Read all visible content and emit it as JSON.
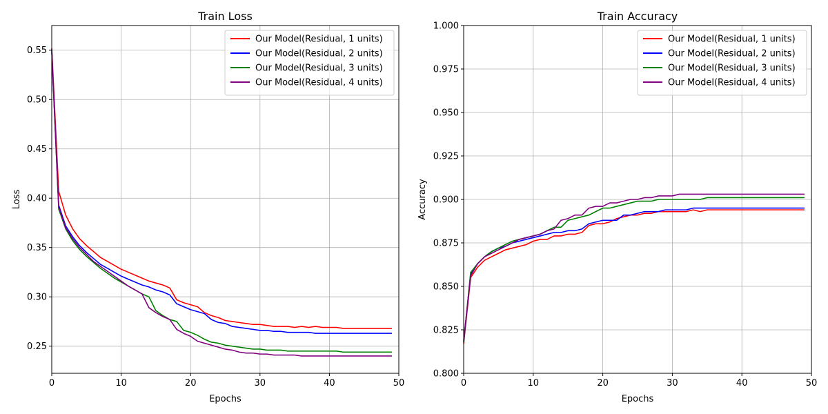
{
  "chart_data": [
    {
      "type": "line",
      "title": "Train Loss",
      "xlabel": "Epochs",
      "ylabel": "Loss",
      "xlim": [
        0,
        50
      ],
      "ylim": [
        0.2225,
        0.575
      ],
      "xticks": [
        0,
        10,
        20,
        30,
        40,
        50
      ],
      "yticks": [
        0.25,
        0.3,
        0.35,
        0.4,
        0.45,
        0.5,
        0.55
      ],
      "ytick_labels": [
        "0.25",
        "0.30",
        "0.35",
        "0.40",
        "0.45",
        "0.50",
        "0.55"
      ],
      "grid": true,
      "legend_position": "top-right",
      "series": [
        {
          "name": "Our Model(Residual, 1 units)",
          "color": "#ff0000",
          "values": [
            0.552,
            0.407,
            0.383,
            0.369,
            0.359,
            0.352,
            0.346,
            0.34,
            0.336,
            0.332,
            0.328,
            0.325,
            0.322,
            0.319,
            0.316,
            0.314,
            0.312,
            0.309,
            0.297,
            0.294,
            0.292,
            0.29,
            0.284,
            0.281,
            0.279,
            0.276,
            0.275,
            0.274,
            0.273,
            0.272,
            0.272,
            0.271,
            0.27,
            0.27,
            0.27,
            0.269,
            0.27,
            0.269,
            0.27,
            0.269,
            0.269,
            0.269,
            0.268,
            0.268,
            0.268,
            0.268,
            0.268,
            0.268,
            0.268,
            0.268
          ]
        },
        {
          "name": "Our Model(Residual, 2 units)",
          "color": "#0000ff",
          "values": [
            0.548,
            0.393,
            0.372,
            0.361,
            0.352,
            0.345,
            0.339,
            0.333,
            0.329,
            0.325,
            0.321,
            0.318,
            0.315,
            0.312,
            0.31,
            0.307,
            0.305,
            0.302,
            0.293,
            0.29,
            0.287,
            0.285,
            0.283,
            0.277,
            0.274,
            0.273,
            0.27,
            0.269,
            0.268,
            0.267,
            0.266,
            0.266,
            0.265,
            0.265,
            0.264,
            0.264,
            0.264,
            0.264,
            0.263,
            0.263,
            0.263,
            0.263,
            0.263,
            0.263,
            0.263,
            0.263,
            0.263,
            0.263,
            0.263,
            0.263
          ]
        },
        {
          "name": "Our Model(Residual, 3 units)",
          "color": "#008000",
          "values": [
            0.55,
            0.389,
            0.369,
            0.357,
            0.348,
            0.341,
            0.335,
            0.329,
            0.324,
            0.319,
            0.315,
            0.311,
            0.307,
            0.303,
            0.3,
            0.286,
            0.281,
            0.277,
            0.275,
            0.266,
            0.264,
            0.261,
            0.257,
            0.254,
            0.253,
            0.251,
            0.25,
            0.249,
            0.248,
            0.247,
            0.247,
            0.246,
            0.246,
            0.246,
            0.245,
            0.245,
            0.245,
            0.245,
            0.245,
            0.245,
            0.245,
            0.245,
            0.244,
            0.244,
            0.244,
            0.244,
            0.244,
            0.244,
            0.244,
            0.244
          ]
        },
        {
          "name": "Our Model(Residual, 4 units)",
          "color": "#800080",
          "values": [
            0.551,
            0.391,
            0.37,
            0.359,
            0.35,
            0.343,
            0.336,
            0.331,
            0.326,
            0.321,
            0.316,
            0.311,
            0.307,
            0.303,
            0.289,
            0.284,
            0.28,
            0.277,
            0.267,
            0.263,
            0.26,
            0.255,
            0.253,
            0.251,
            0.249,
            0.247,
            0.246,
            0.244,
            0.243,
            0.243,
            0.242,
            0.242,
            0.241,
            0.241,
            0.241,
            0.241,
            0.24,
            0.24,
            0.24,
            0.24,
            0.24,
            0.24,
            0.24,
            0.24,
            0.24,
            0.24,
            0.24,
            0.24,
            0.24,
            0.24
          ]
        }
      ]
    },
    {
      "type": "line",
      "title": "Train Accuracy",
      "xlabel": "Epochs",
      "ylabel": "Accuracy",
      "xlim": [
        0,
        50
      ],
      "ylim": [
        0.8,
        1.0
      ],
      "xticks": [
        0,
        10,
        20,
        30,
        40,
        50
      ],
      "yticks": [
        0.8,
        0.825,
        0.85,
        0.875,
        0.9,
        0.925,
        0.95,
        0.975,
        1.0
      ],
      "ytick_labels": [
        "0.800",
        "0.825",
        "0.850",
        "0.875",
        "0.900",
        "0.925",
        "0.950",
        "0.975",
        "1.000"
      ],
      "grid": true,
      "legend_position": "top-right",
      "series": [
        {
          "name": "Our Model(Residual, 1 units)",
          "color": "#ff0000",
          "values": [
            0.817,
            0.855,
            0.861,
            0.865,
            0.867,
            0.869,
            0.871,
            0.872,
            0.873,
            0.874,
            0.876,
            0.877,
            0.877,
            0.879,
            0.879,
            0.88,
            0.88,
            0.881,
            0.885,
            0.886,
            0.886,
            0.887,
            0.889,
            0.89,
            0.891,
            0.891,
            0.892,
            0.892,
            0.893,
            0.893,
            0.893,
            0.893,
            0.893,
            0.894,
            0.893,
            0.894,
            0.894,
            0.894,
            0.894,
            0.894,
            0.894,
            0.894,
            0.894,
            0.894,
            0.894,
            0.894,
            0.894,
            0.894,
            0.894,
            0.894
          ]
        },
        {
          "name": "Our Model(Residual, 2 units)",
          "color": "#0000ff",
          "values": [
            0.818,
            0.857,
            0.863,
            0.867,
            0.87,
            0.872,
            0.873,
            0.875,
            0.876,
            0.877,
            0.878,
            0.879,
            0.88,
            0.881,
            0.881,
            0.882,
            0.882,
            0.883,
            0.886,
            0.887,
            0.888,
            0.888,
            0.888,
            0.891,
            0.891,
            0.892,
            0.893,
            0.893,
            0.893,
            0.894,
            0.894,
            0.894,
            0.894,
            0.895,
            0.895,
            0.895,
            0.895,
            0.895,
            0.895,
            0.895,
            0.895,
            0.895,
            0.895,
            0.895,
            0.895,
            0.895,
            0.895,
            0.895,
            0.895,
            0.895
          ]
        },
        {
          "name": "Our Model(Residual, 3 units)",
          "color": "#008000",
          "values": [
            0.818,
            0.858,
            0.863,
            0.867,
            0.87,
            0.872,
            0.874,
            0.876,
            0.877,
            0.878,
            0.879,
            0.88,
            0.882,
            0.884,
            0.884,
            0.888,
            0.889,
            0.89,
            0.891,
            0.893,
            0.895,
            0.895,
            0.896,
            0.897,
            0.898,
            0.899,
            0.899,
            0.899,
            0.9,
            0.9,
            0.9,
            0.9,
            0.9,
            0.9,
            0.9,
            0.901,
            0.901,
            0.901,
            0.901,
            0.901,
            0.901,
            0.901,
            0.901,
            0.901,
            0.901,
            0.901,
            0.901,
            0.901,
            0.901,
            0.901
          ]
        },
        {
          "name": "Our Model(Residual, 4 units)",
          "color": "#800080",
          "values": [
            0.819,
            0.856,
            0.863,
            0.867,
            0.869,
            0.871,
            0.873,
            0.875,
            0.877,
            0.878,
            0.879,
            0.88,
            0.882,
            0.883,
            0.888,
            0.889,
            0.891,
            0.891,
            0.895,
            0.896,
            0.896,
            0.898,
            0.898,
            0.899,
            0.9,
            0.9,
            0.901,
            0.901,
            0.902,
            0.902,
            0.902,
            0.903,
            0.903,
            0.903,
            0.903,
            0.903,
            0.903,
            0.903,
            0.903,
            0.903,
            0.903,
            0.903,
            0.903,
            0.903,
            0.903,
            0.903,
            0.903,
            0.903,
            0.903,
            0.903
          ]
        }
      ]
    }
  ]
}
